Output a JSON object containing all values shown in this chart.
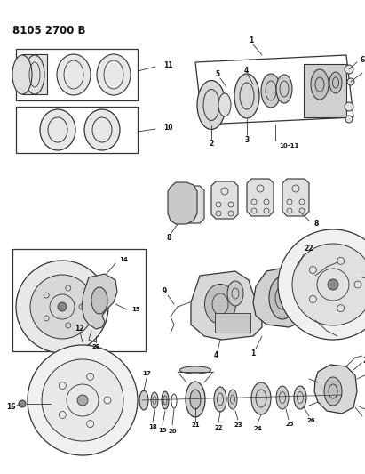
{
  "title": "8105 2700 B",
  "bg_color": "#ffffff",
  "lc": "#333333",
  "tc": "#111111",
  "figsize": [
    4.11,
    5.33
  ],
  "dpi": 100
}
